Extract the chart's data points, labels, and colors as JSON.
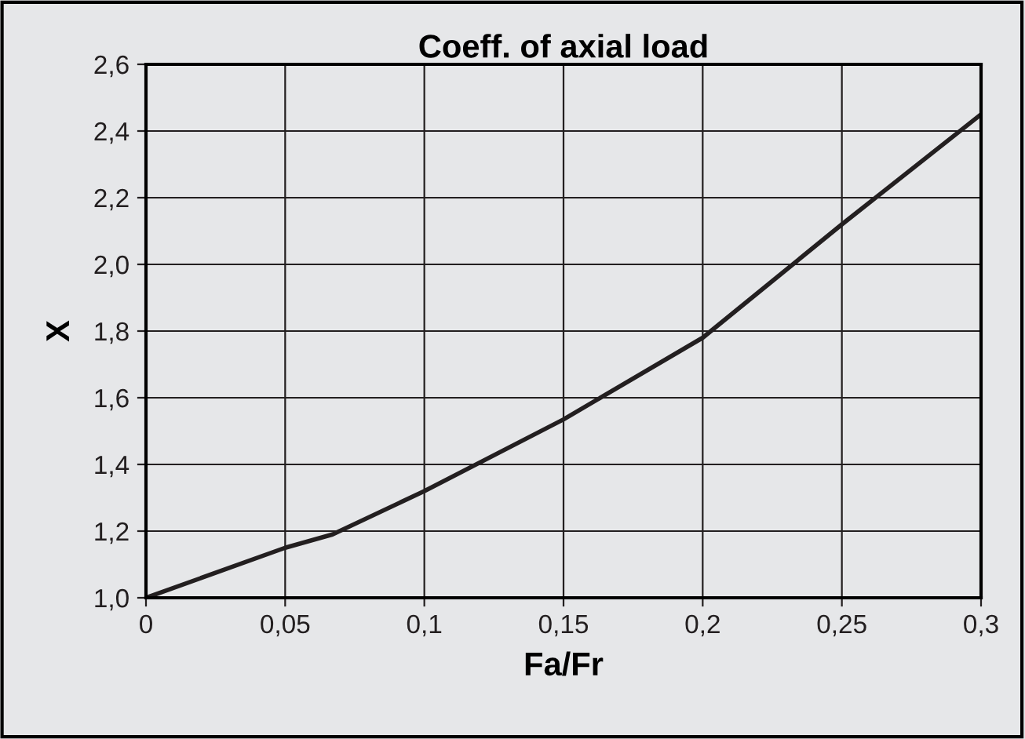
{
  "chart_data": {
    "type": "line",
    "title": "Coeff. of axial load",
    "xlabel": "Fa/Fr",
    "ylabel": "X",
    "x": [
      0,
      0.05,
      0.067,
      0.1,
      0.15,
      0.2,
      0.25,
      0.3
    ],
    "series": [
      {
        "color": "#231f20",
        "values": [
          1.0,
          1.15,
          1.19,
          1.32,
          1.535,
          1.78,
          2.12,
          2.45
        ]
      }
    ],
    "xlim": [
      0,
      0.3
    ],
    "ylim": [
      1.0,
      2.6
    ],
    "xticks": [
      0,
      {
        "value": 0.05,
        "label": "0,05"
      },
      {
        "value": 0.1,
        "label": "0,1"
      },
      {
        "value": 0.15,
        "label": "0,15"
      },
      {
        "value": 0.2,
        "label": "0,2"
      },
      {
        "value": 0.25,
        "label": "0,25"
      },
      {
        "value": 0.3,
        "label": "0,3"
      }
    ],
    "yticks": [
      {
        "value": 1.0,
        "label": "1,0"
      },
      {
        "value": 1.2,
        "label": "1,2"
      },
      {
        "value": 1.4,
        "label": "1,4"
      },
      {
        "value": 1.6,
        "label": "1,6"
      },
      {
        "value": 1.8,
        "label": "1,8"
      },
      {
        "value": 2.0,
        "label": "2,0"
      },
      {
        "value": 2.2,
        "label": "2,2"
      },
      {
        "value": 2.4,
        "label": "2,4"
      },
      {
        "value": 2.6,
        "label": "2,6"
      }
    ],
    "grid": true,
    "marker": "none",
    "line_style": "solid"
  }
}
